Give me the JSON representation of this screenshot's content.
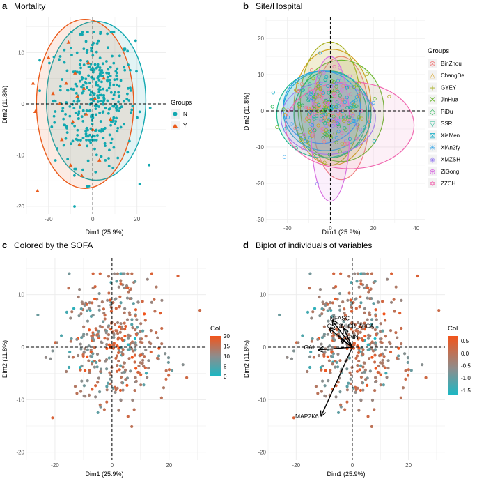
{
  "figure": {
    "colors": {
      "panel_bg": "#ffffff",
      "grid": "#ebebeb",
      "N": "#12a8b0",
      "Y": "#ea5a1a",
      "grad_high": "#f2541b",
      "grad_mid": "#8d8d8d",
      "grad_low": "#1ab8c4"
    }
  },
  "chart_data": [
    {
      "id": "a",
      "letter": "a",
      "title": "Mortality",
      "type": "scatter",
      "xlabel": "Dim1 (25.9%)",
      "ylabel": "Dim2 (11.8%)",
      "xlim": [
        -30,
        33
      ],
      "ylim": [
        -21.5,
        17
      ],
      "xticks": [
        -20,
        0,
        20
      ],
      "yticks": [
        -20,
        -10,
        0,
        10
      ],
      "legend": {
        "title": "Groups",
        "position": "right",
        "entries": [
          {
            "label": "N",
            "shape": "circle",
            "color": "#12a8b0"
          },
          {
            "label": "Y",
            "shape": "triangle",
            "color": "#ea5a1a"
          }
        ]
      },
      "ellipses": [
        {
          "group": "N",
          "center": [
            1.5,
            0.6
          ],
          "rx": 22.5,
          "ry": 15.5,
          "color": "#12a8b0"
        },
        {
          "group": "Y",
          "center": [
            -3.5,
            0.0
          ],
          "rx": 22.0,
          "ry": 16.5,
          "color": "#ea5a1a"
        }
      ],
      "points": [
        {
          "group": "Y",
          "x": -27,
          "y": 4
        },
        {
          "group": "Y",
          "x": -26,
          "y": -1.5
        },
        {
          "group": "Y",
          "x": -25,
          "y": -17
        },
        {
          "group": "Y",
          "x": -20,
          "y": 9
        },
        {
          "group": "Y",
          "x": -18,
          "y": 2
        },
        {
          "group": "Y",
          "x": -14,
          "y": -7
        },
        {
          "group": "Y",
          "x": -12,
          "y": 4
        },
        {
          "group": "Y",
          "x": -10,
          "y": -12
        },
        {
          "group": "Y",
          "x": -8,
          "y": 6
        },
        {
          "group": "Y",
          "x": -7,
          "y": 1.5
        },
        {
          "group": "Y",
          "x": -6,
          "y": -8
        },
        {
          "group": "Y",
          "x": -4,
          "y": 3
        },
        {
          "group": "Y",
          "x": -3,
          "y": -2
        },
        {
          "group": "Y",
          "x": -2,
          "y": 8
        },
        {
          "group": "Y",
          "x": 0,
          "y": -5
        },
        {
          "group": "Y",
          "x": 1,
          "y": 1
        },
        {
          "group": "Y",
          "x": 3,
          "y": -11
        },
        {
          "group": "Y",
          "x": 5,
          "y": 5
        },
        {
          "group": "Y",
          "x": -9,
          "y": -3.5
        },
        {
          "group": "Y",
          "x": -15,
          "y": 0
        },
        {
          "group": "Y",
          "x": -5,
          "y": -14
        },
        {
          "group": "Y",
          "x": 8,
          "y": -3
        },
        {
          "group": "Y",
          "x": -11,
          "y": 12
        }
      ]
    },
    {
      "id": "b",
      "letter": "b",
      "title": "Site/Hospital",
      "type": "scatter",
      "xlabel": "Dim1 (25.9%)",
      "ylabel": "Dim2 (11.8%)",
      "xlim": [
        -30,
        44
      ],
      "ylim": [
        -31,
        26
      ],
      "xticks": [
        -20,
        0,
        20,
        40
      ],
      "yticks": [
        -30,
        -20,
        -10,
        0,
        10,
        20
      ],
      "legend": {
        "title": "Groups",
        "position": "right",
        "entries": [
          {
            "label": "BinZhou",
            "color": "#f08080",
            "sym": "⊗"
          },
          {
            "label": "ChangDe",
            "color": "#d4a020",
            "sym": "△"
          },
          {
            "label": "GYEY",
            "color": "#a8b020",
            "sym": "+"
          },
          {
            "label": "JinHua",
            "color": "#6cb830",
            "sym": "✕"
          },
          {
            "label": "PiDu",
            "color": "#2ab858",
            "sym": "◇"
          },
          {
            "label": "SSR",
            "color": "#20b890",
            "sym": "▽"
          },
          {
            "label": "XiaMen",
            "color": "#20b0c8",
            "sym": "⊠"
          },
          {
            "label": "XiAn2fy",
            "color": "#28a0e8",
            "sym": "✳"
          },
          {
            "label": "XMZSH",
            "color": "#9a80f0",
            "sym": "◈"
          },
          {
            "label": "ZiGong",
            "color": "#d870e0",
            "sym": "⊕"
          },
          {
            "label": "ZZCH",
            "color": "#f068b0",
            "sym": "✡"
          }
        ]
      },
      "ellipses": [
        {
          "group": "BinZhou",
          "center": [
            5,
            -2
          ],
          "rx": 13,
          "ry": 17,
          "color": "#f08080"
        },
        {
          "group": "ChangDe",
          "center": [
            1,
            1
          ],
          "rx": 18,
          "ry": 16,
          "color": "#d4a020"
        },
        {
          "group": "GYEY",
          "center": [
            0,
            2
          ],
          "rx": 14,
          "ry": 17,
          "color": "#a8b020"
        },
        {
          "group": "JinHua",
          "center": [
            5,
            0
          ],
          "rx": 20,
          "ry": 14,
          "color": "#6cb830"
        },
        {
          "group": "PiDu",
          "center": [
            0,
            -1
          ],
          "rx": 17,
          "ry": 12,
          "color": "#2ab858"
        },
        {
          "group": "SSR",
          "center": [
            -3,
            -1
          ],
          "rx": 22,
          "ry": 12,
          "color": "#20b890"
        },
        {
          "group": "XiaMen",
          "center": [
            -2,
            0
          ],
          "rx": 20,
          "ry": 11,
          "color": "#20b0c8"
        },
        {
          "group": "XiAn2fy",
          "center": [
            -4,
            1
          ],
          "rx": 18,
          "ry": 10,
          "color": "#28a0e8"
        },
        {
          "group": "XMZSH",
          "center": [
            -1,
            -2
          ],
          "rx": 22,
          "ry": 10,
          "color": "#9a80f0"
        },
        {
          "group": "ZiGong",
          "center": [
            0,
            -5
          ],
          "rx": 9,
          "ry": 20,
          "color": "#d870e0"
        },
        {
          "group": "ZZCH",
          "center": [
            9,
            -4
          ],
          "rx": 30,
          "ry": 12,
          "color": "#f068b0"
        }
      ]
    },
    {
      "id": "c",
      "letter": "c",
      "title": "Colored by the SOFA",
      "type": "scatter",
      "xlabel": "Dim1 (25.9%)",
      "ylabel": "Dim2 (11.8%)",
      "xlim": [
        -30,
        33
      ],
      "ylim": [
        -21.5,
        17
      ],
      "xticks": [
        -20,
        0,
        20
      ],
      "yticks": [
        -20,
        -10,
        0,
        10
      ],
      "colorbar": {
        "title": "Col.",
        "min": 0,
        "max": 20,
        "ticks": [
          0,
          5,
          10,
          15,
          20
        ]
      }
    },
    {
      "id": "d",
      "letter": "d",
      "title": "Biplot of individuals of variables",
      "type": "scatter",
      "xlabel": "Dim1 (25.9%)",
      "ylabel": "Dim2 (11.8%)",
      "xlim": [
        -30,
        33
      ],
      "ylim": [
        -21.5,
        17
      ],
      "xticks": [
        -20,
        0,
        20
      ],
      "yticks": [
        -20,
        -10,
        0,
        10
      ],
      "colorbar": {
        "title": "Col.",
        "min": -1.7,
        "max": 0.7,
        "ticks": [
          0.5,
          0.0,
          -0.5,
          -1.0,
          -1.5
        ]
      },
      "arrows": [
        {
          "label": "NFASC",
          "x": -7,
          "y": 5
        },
        {
          "label": "CSF3",
          "x": -8,
          "y": 3.5
        },
        {
          "label": "MICB_MICA",
          "x": -3,
          "y": 3.5
        },
        {
          "label": "ICHAIN",
          "x": -4,
          "y": 1.5
        },
        {
          "label": "GAL",
          "x": -12,
          "y": -0.5
        },
        {
          "label": "MAP2K6",
          "x": -11,
          "y": -13
        }
      ]
    }
  ]
}
